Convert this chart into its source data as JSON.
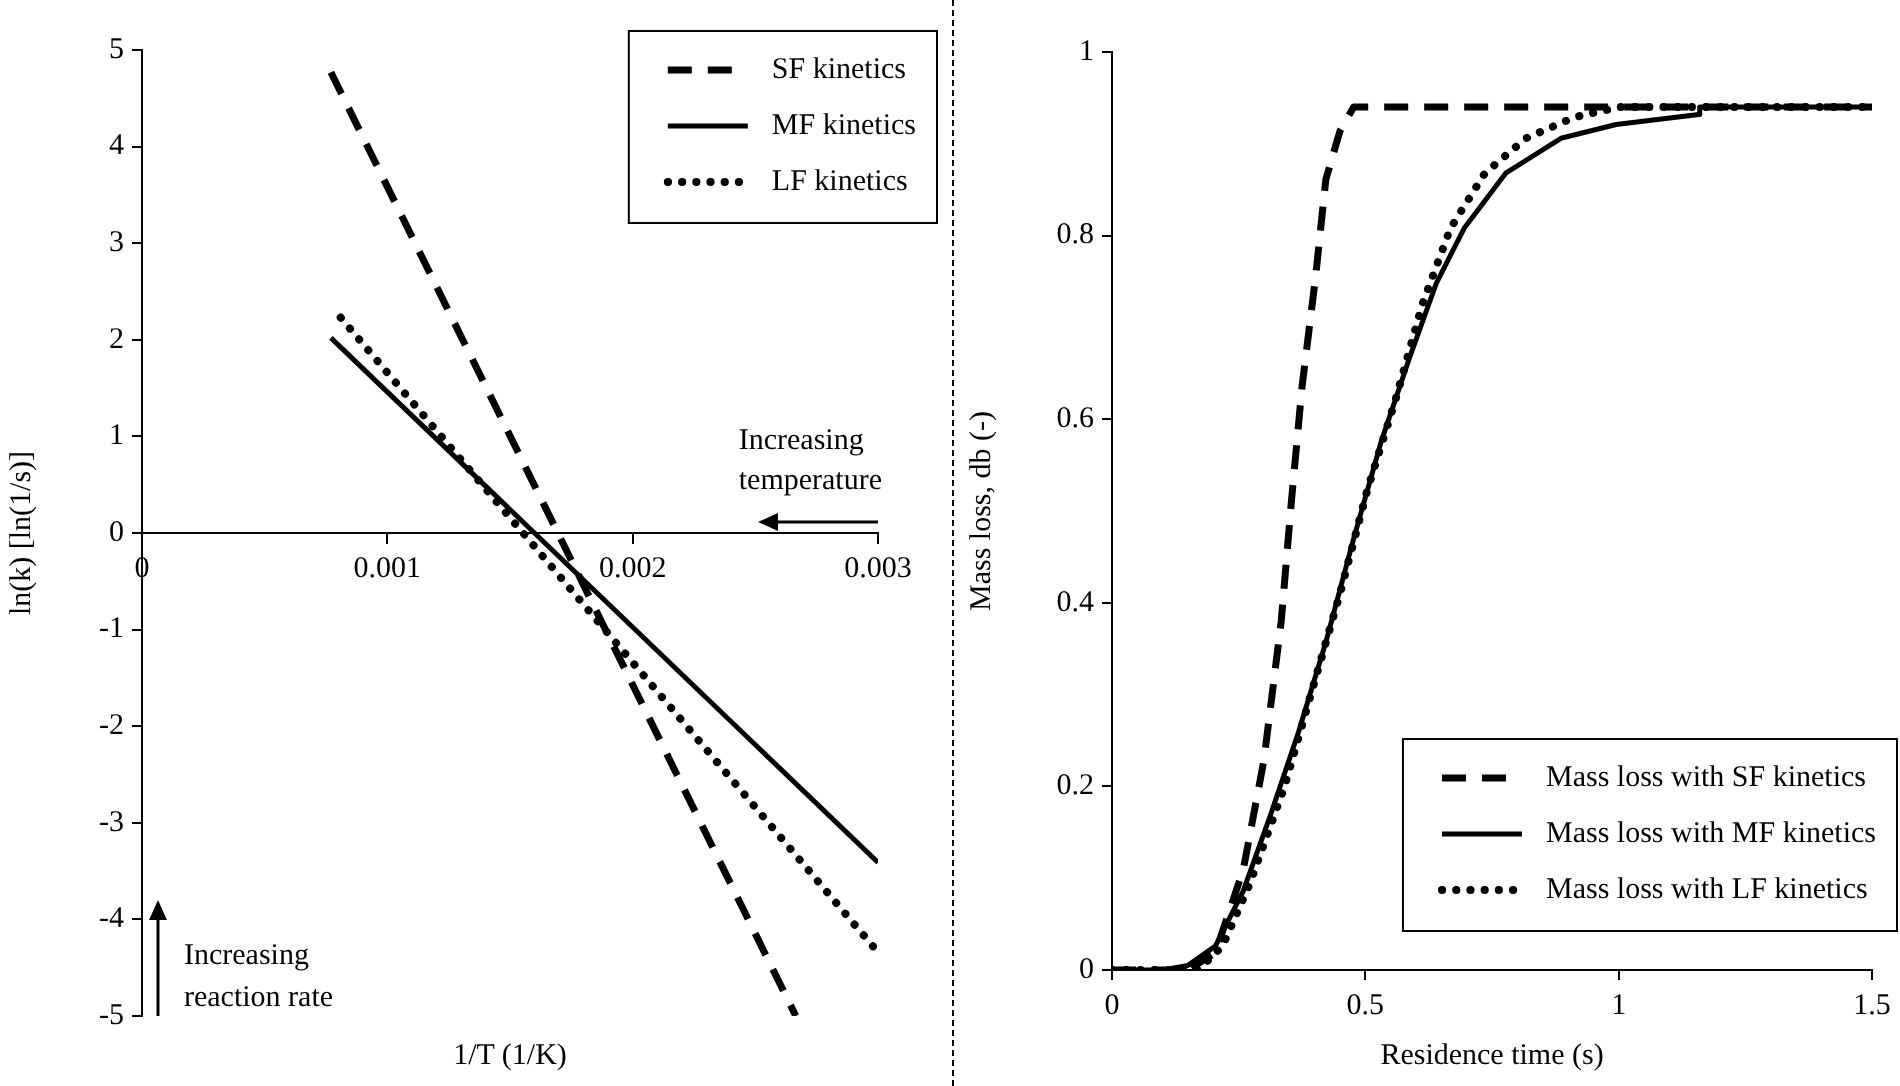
{
  "chart_data": [
    {
      "type": "line",
      "xlabel": "1/T (1/K)",
      "ylabel": "ln(k) [ln(1/s)]",
      "xlim": [
        0,
        0.003
      ],
      "ylim": [
        -5,
        5
      ],
      "xticks": [
        0,
        0.001,
        0.002,
        0.003
      ],
      "yticks": [
        -5,
        -4,
        -3,
        -2,
        -1,
        0,
        1,
        2,
        3,
        4,
        5
      ],
      "legend": "top right",
      "annotations": [
        "Increasing temperature",
        "Increasing reaction rate"
      ],
      "series": [
        {
          "name": "SF kinetics",
          "color": "#000000",
          "line_style": "dashed",
          "x": [
            0.00077,
            0.002665
          ],
          "values": [
            4.77,
            -5
          ]
        },
        {
          "name": "MF kinetics",
          "color": "#000000",
          "line_style": "solid",
          "x": [
            0.00077,
            0.003
          ],
          "values": [
            2.02,
            -3.41
          ]
        },
        {
          "name": "LF kinetics",
          "color": "#000000",
          "line_style": "dotted",
          "x": [
            0.00081,
            0.003
          ],
          "values": [
            2.23,
            -4.34
          ]
        }
      ]
    },
    {
      "type": "line",
      "xlabel": "Residence time (s)",
      "ylabel": "Mass loss, db (-)",
      "xlim": [
        0,
        1.5
      ],
      "ylim": [
        0,
        1
      ],
      "xticks": [
        0,
        0.5,
        1,
        1.5
      ],
      "yticks": [
        0,
        0.2,
        0.4,
        0.6,
        0.8,
        1
      ],
      "legend": "bottom right",
      "series": [
        {
          "name": "Mass loss with SF kinetics",
          "color": "#000000",
          "line_style": "dashed",
          "x": [
            0,
            0.15,
            0.204,
            0.259,
            0.3,
            0.334,
            0.354,
            0.375,
            0.402,
            0.422,
            0.45,
            0.477,
            1.5
          ],
          "values": [
            0,
            0,
            0.019,
            0.109,
            0.229,
            0.38,
            0.51,
            0.635,
            0.756,
            0.861,
            0.914,
            0.94,
            0.94
          ]
        },
        {
          "name": "Mass loss with MF kinetics",
          "color": "#000000",
          "line_style": "solid",
          "x": [
            0,
            0.1,
            0.15,
            0.204,
            0.259,
            0.313,
            0.368,
            0.422,
            0.477,
            0.531,
            0.586,
            0.64,
            0.695,
            0.777,
            0.886,
            0.995,
            1.158,
            1.16,
            1.5
          ],
          "values": [
            0,
            0,
            0.005,
            0.026,
            0.086,
            0.169,
            0.259,
            0.357,
            0.47,
            0.575,
            0.665,
            0.748,
            0.808,
            0.868,
            0.906,
            0.921,
            0.932,
            0.94,
            0.94
          ]
        },
        {
          "name": "Mass loss with LF kinetics",
          "color": "#000000",
          "line_style": "dotted",
          "x": [
            0,
            0.17,
            0.218,
            0.272,
            0.34,
            0.395,
            0.45,
            0.504,
            0.559,
            0.613,
            0.668,
            0.736,
            0.817,
            0.913,
            1.0,
            1.5
          ],
          "values": [
            0,
            0,
            0.026,
            0.094,
            0.199,
            0.305,
            0.41,
            0.523,
            0.62,
            0.726,
            0.808,
            0.868,
            0.906,
            0.929,
            0.94,
            0.94
          ]
        }
      ]
    }
  ]
}
